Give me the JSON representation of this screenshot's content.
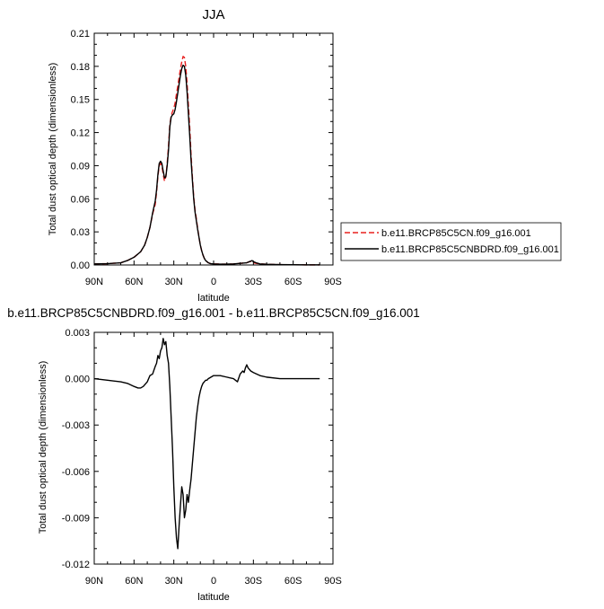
{
  "chart_data": [
    {
      "type": "line",
      "title": "JJA",
      "xlabel": "latitude",
      "ylabel": "Total dust optical depth (dimensionless)",
      "xlim": [
        90,
        -90
      ],
      "ylim": [
        0,
        0.21
      ],
      "x_ticks": [
        90,
        60,
        30,
        0,
        -30,
        -60,
        -90
      ],
      "x_tick_labels": [
        "90N",
        "60N",
        "30N",
        "0",
        "30S",
        "60S",
        "90S"
      ],
      "y_ticks": [
        0,
        0.03,
        0.06,
        0.09,
        0.12,
        0.15,
        0.18,
        0.21
      ],
      "y_tick_labels": [
        "0.00",
        "0.03",
        "0.06",
        "0.09",
        "0.12",
        "0.15",
        "0.18",
        "0.21"
      ],
      "legend_position": "outside-right",
      "series": [
        {
          "name": "b.e11.BRCP85C5CN.f09_g16.001",
          "color": "#e8201f",
          "dash": "dashed",
          "x": [
            90,
            80,
            70,
            65,
            60,
            55,
            52,
            50,
            48,
            46,
            44,
            43,
            42,
            41,
            40,
            39,
            38,
            37,
            36,
            35,
            34,
            33,
            32,
            31,
            30,
            29,
            28,
            27,
            26,
            25,
            24,
            23,
            22,
            21,
            20,
            19,
            18,
            17,
            16,
            15,
            14,
            13,
            12,
            11,
            10,
            9,
            8,
            7,
            6,
            5,
            4,
            3,
            2,
            0,
            -5,
            -10,
            -15,
            -20,
            -25,
            -27,
            -29,
            -30,
            -32,
            -35,
            -40,
            -50,
            -60,
            -70,
            -80
          ],
          "y": [
            0.001,
            0.0012,
            0.002,
            0.004,
            0.007,
            0.012,
            0.018,
            0.025,
            0.034,
            0.046,
            0.055,
            0.066,
            0.08,
            0.09,
            0.092,
            0.09,
            0.082,
            0.076,
            0.08,
            0.092,
            0.108,
            0.127,
            0.135,
            0.139,
            0.142,
            0.147,
            0.155,
            0.162,
            0.17,
            0.178,
            0.184,
            0.189,
            0.188,
            0.18,
            0.165,
            0.145,
            0.125,
            0.1,
            0.08,
            0.062,
            0.05,
            0.042,
            0.033,
            0.025,
            0.018,
            0.013,
            0.009,
            0.006,
            0.004,
            0.003,
            0.002,
            0.0015,
            0.0012,
            0.001,
            0.0008,
            0.0008,
            0.001,
            0.0015,
            0.002,
            0.003,
            0.003,
            0.002,
            0.0015,
            0.001,
            0.0006,
            0.0003,
            0.0002,
            0.0001,
            0.0001
          ]
        },
        {
          "name": "b.e11.BRCP85C5CNBDRD.f09_g16.001",
          "color": "#000000",
          "dash": "solid",
          "x": [
            90,
            80,
            70,
            65,
            60,
            55,
            52,
            50,
            48,
            46,
            44,
            43,
            42,
            41,
            40,
            39,
            38,
            37,
            36,
            35,
            34,
            33,
            32,
            31,
            30,
            29,
            28,
            27,
            26,
            25,
            24,
            23,
            22,
            21,
            20,
            19,
            18,
            17,
            16,
            15,
            14,
            13,
            12,
            11,
            10,
            9,
            8,
            7,
            6,
            5,
            4,
            3,
            2,
            0,
            -5,
            -10,
            -15,
            -20,
            -25,
            -27,
            -29,
            -30,
            -32,
            -35,
            -40,
            -50,
            -60,
            -70,
            -80
          ],
          "y": [
            0.001,
            0.0012,
            0.002,
            0.004,
            0.007,
            0.012,
            0.018,
            0.025,
            0.034,
            0.047,
            0.058,
            0.068,
            0.082,
            0.092,
            0.094,
            0.092,
            0.085,
            0.079,
            0.08,
            0.09,
            0.104,
            0.125,
            0.134,
            0.136,
            0.137,
            0.141,
            0.148,
            0.156,
            0.164,
            0.172,
            0.178,
            0.181,
            0.18,
            0.172,
            0.157,
            0.137,
            0.117,
            0.095,
            0.077,
            0.06,
            0.048,
            0.04,
            0.032,
            0.025,
            0.018,
            0.013,
            0.009,
            0.006,
            0.004,
            0.003,
            0.002,
            0.0015,
            0.0012,
            0.001,
            0.0008,
            0.0008,
            0.001,
            0.0015,
            0.002,
            0.003,
            0.004,
            0.003,
            0.002,
            0.001,
            0.0006,
            0.0003,
            0.0002,
            0.0001,
            0.0001
          ]
        }
      ]
    },
    {
      "type": "line",
      "title": "b.e11.BRCP85C5CNBDRD.f09_g16.001 - b.e11.BRCP85C5CN.f09_g16.001",
      "xlabel": "latitude",
      "ylabel": "Total dust optical depth (dimensionless)",
      "xlim": [
        90,
        -90
      ],
      "ylim": [
        -0.012,
        0.003
      ],
      "x_ticks": [
        90,
        60,
        30,
        0,
        -30,
        -60,
        -90
      ],
      "x_tick_labels": [
        "90N",
        "60N",
        "30N",
        "0",
        "30S",
        "60S",
        "90S"
      ],
      "y_ticks": [
        0.003,
        0,
        -0.003,
        -0.006,
        -0.009,
        -0.012
      ],
      "y_tick_labels": [
        "0.003",
        "0.000",
        "-0.003",
        "-0.006",
        "-0.009",
        "-0.012"
      ],
      "series": [
        {
          "color": "#000000",
          "dash": "solid",
          "x": [
            90,
            80,
            70,
            65,
            60,
            57,
            55,
            53,
            50,
            48,
            46,
            44,
            43,
            42,
            41,
            40,
            39,
            38,
            37,
            36,
            35,
            34,
            33,
            32,
            31,
            30,
            29,
            28,
            27,
            26,
            25,
            24,
            23,
            22,
            21,
            20,
            19,
            18,
            17,
            16,
            15,
            14,
            13,
            12,
            11,
            10,
            9,
            8,
            7,
            6,
            5,
            4,
            2,
            0,
            -5,
            -10,
            -15,
            -18,
            -20,
            -22,
            -23,
            -24,
            -25,
            -26,
            -28,
            -30,
            -35,
            -40,
            -50,
            -60,
            -70,
            -80
          ],
          "y": [
            0,
            -0.0001,
            -0.0002,
            -0.0003,
            -0.0005,
            -0.0006,
            -0.0006,
            -0.0005,
            -0.0002,
            0.0002,
            0.0003,
            0.0008,
            0.001,
            0.0015,
            0.0013,
            0.0018,
            0.002,
            0.0026,
            0.0022,
            0.0024,
            0.0015,
            0.001,
            -0.0005,
            -0.0025,
            -0.0045,
            -0.007,
            -0.009,
            -0.0103,
            -0.011,
            -0.0095,
            -0.0082,
            -0.007,
            -0.0075,
            -0.009,
            -0.0085,
            -0.0075,
            -0.008,
            -0.0072,
            -0.0065,
            -0.0055,
            -0.0045,
            -0.0035,
            -0.0025,
            -0.0018,
            -0.0012,
            -0.0008,
            -0.0005,
            -0.0003,
            -0.0002,
            -0.0001,
            -0.0001,
            0,
            0.0001,
            0.0002,
            0.0002,
            0.0001,
            0,
            -0.0002,
            0.0003,
            0.0005,
            0.0004,
            0.0007,
            0.0009,
            0.0007,
            0.0005,
            0.0004,
            0.0002,
            0.0001,
            0,
            0,
            0,
            0
          ]
        }
      ]
    }
  ]
}
